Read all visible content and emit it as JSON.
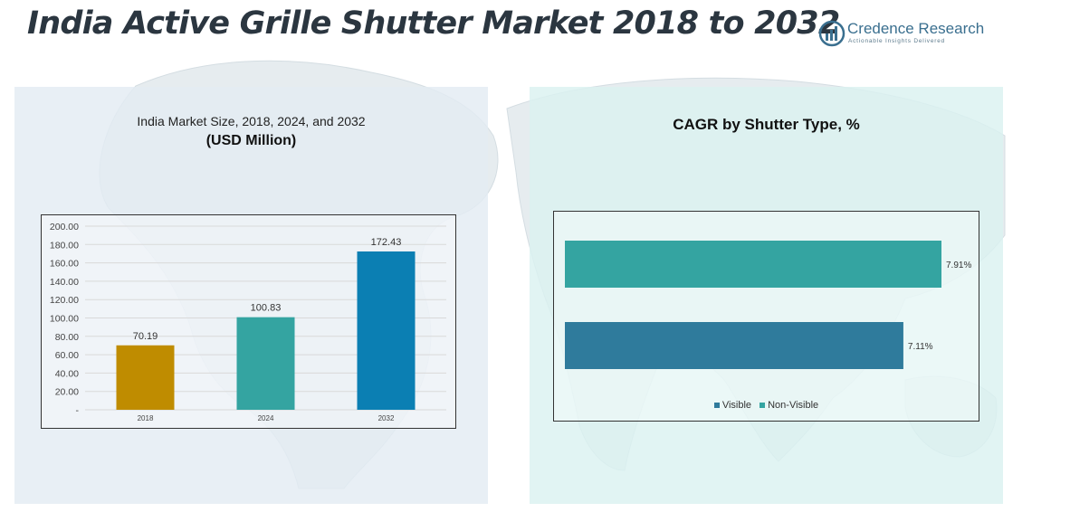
{
  "header": {
    "title": "India Active Grille Shutter Market 2018 to 2032",
    "logo_name": "Credence Research",
    "logo_tagline": "Actionable Insights Delivered"
  },
  "left_panel": {
    "subtitle": "India Market Size, 2018, 2024, and 2032",
    "unit": "(USD Million)"
  },
  "right_panel": {
    "title": "CAGR by Shutter Type, %"
  },
  "chart_data": [
    {
      "type": "bar",
      "title": "India Market Size, 2018, 2024, and 2032",
      "subtitle": "(USD Million)",
      "categories": [
        "2018",
        "2024",
        "2032"
      ],
      "values": [
        70.19,
        100.83,
        172.43
      ],
      "value_labels": [
        "70.19",
        "100.83",
        "172.43"
      ],
      "colors": [
        "#bf8c00",
        "#34a4a1",
        "#0b7fb3"
      ],
      "ylim": [
        0,
        200
      ],
      "yticks": [
        "-",
        "20.00",
        "40.00",
        "60.00",
        "80.00",
        "100.00",
        "120.00",
        "140.00",
        "160.00",
        "180.00",
        "200.00"
      ],
      "grid": true
    },
    {
      "type": "bar",
      "orientation": "horizontal",
      "title": "CAGR by Shutter Type, %",
      "series": [
        {
          "name": "Visible",
          "value": 7.11,
          "label": "7.11%",
          "color": "#2f7b9c"
        },
        {
          "name": "Non-Visible",
          "value": 7.91,
          "label": "7.91%",
          "color": "#34a4a1"
        }
      ],
      "legend": "bottom",
      "legend_labels": [
        "Visible",
        "Non-Visible"
      ]
    }
  ]
}
